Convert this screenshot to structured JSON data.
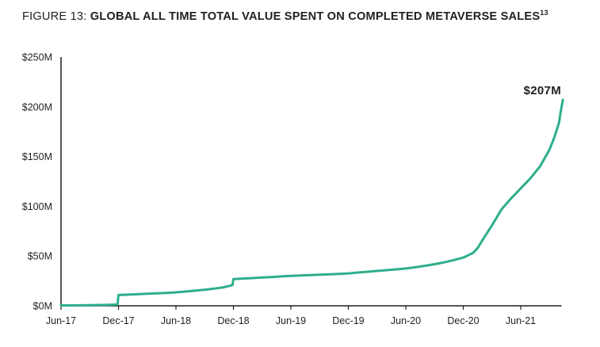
{
  "title": {
    "prefix": "FIGURE 13: ",
    "main": "GLOBAL ALL TIME TOTAL VALUE SPENT ON COMPLETED METAVERSE SALES",
    "superscript": "13"
  },
  "colors": {
    "line": "#2dae8c",
    "text": "#231f20",
    "axis": "#231f20",
    "background": "#ffffff"
  },
  "chart_data": {
    "type": "line",
    "title": "FIGURE 13: GLOBAL ALL TIME TOTAL VALUE SPENT ON COMPLETED METAVERSE SALES",
    "unit": "USD millions",
    "x_tick_labels": [
      "Jun-17",
      "Dec-17",
      "Jun-18",
      "Dec-18",
      "Jun-19",
      "Dec-19",
      "Jun-20",
      "Dec-20",
      "Jun-21"
    ],
    "months_per_tick": 6,
    "y_tick_values": [
      0,
      50,
      100,
      150,
      200,
      250
    ],
    "y_tick_labels": [
      "$0M",
      "$50M",
      "$100M",
      "$150M",
      "$200M",
      "$250M"
    ],
    "ylim": [
      0,
      250
    ],
    "grid": false,
    "legend": false,
    "end_label": "$207M",
    "end_value": 207,
    "series": [
      {
        "name": "cumulative-total-value-spent",
        "points_format": "[months_since_Jun-17, value_in_$M]",
        "points": [
          [
            0,
            0.4
          ],
          [
            1,
            0.4
          ],
          [
            2,
            0.5
          ],
          [
            3,
            0.6
          ],
          [
            4,
            0.8
          ],
          [
            5,
            1.0
          ],
          [
            5.9,
            1.3
          ],
          [
            6,
            10.8
          ],
          [
            7,
            11.2
          ],
          [
            8,
            11.6
          ],
          [
            9,
            12.1
          ],
          [
            10,
            12.5
          ],
          [
            11,
            13.0
          ],
          [
            12,
            13.5
          ],
          [
            13,
            14.3
          ],
          [
            14,
            15.2
          ],
          [
            15,
            16.2
          ],
          [
            16,
            17.3
          ],
          [
            17,
            18.6
          ],
          [
            17.9,
            20.8
          ],
          [
            18,
            26.8
          ],
          [
            19,
            27.4
          ],
          [
            20,
            27.9
          ],
          [
            21,
            28.4
          ],
          [
            22,
            28.9
          ],
          [
            23,
            29.5
          ],
          [
            24,
            30.0
          ],
          [
            25,
            30.5
          ],
          [
            26,
            30.9
          ],
          [
            27,
            31.3
          ],
          [
            28,
            31.7
          ],
          [
            29,
            32.1
          ],
          [
            30,
            32.6
          ],
          [
            31,
            33.4
          ],
          [
            32,
            34.2
          ],
          [
            33,
            35.0
          ],
          [
            34,
            35.8
          ],
          [
            35,
            36.6
          ],
          [
            36,
            37.5
          ],
          [
            37,
            38.8
          ],
          [
            38,
            40.2
          ],
          [
            39,
            41.8
          ],
          [
            40,
            43.6
          ],
          [
            41,
            45.9
          ],
          [
            42,
            48.5
          ],
          [
            43,
            53.0
          ],
          [
            43.5,
            58.0
          ],
          [
            44,
            66.0
          ],
          [
            45,
            81.0
          ],
          [
            46,
            97.0
          ],
          [
            47,
            108.0
          ],
          [
            48,
            118.0
          ],
          [
            49,
            128.0
          ],
          [
            50,
            140.0
          ],
          [
            51,
            157.0
          ],
          [
            51.5,
            169.0
          ],
          [
            52,
            184.0
          ],
          [
            52.2,
            197.0
          ],
          [
            52.4,
            207.0
          ]
        ]
      }
    ]
  }
}
